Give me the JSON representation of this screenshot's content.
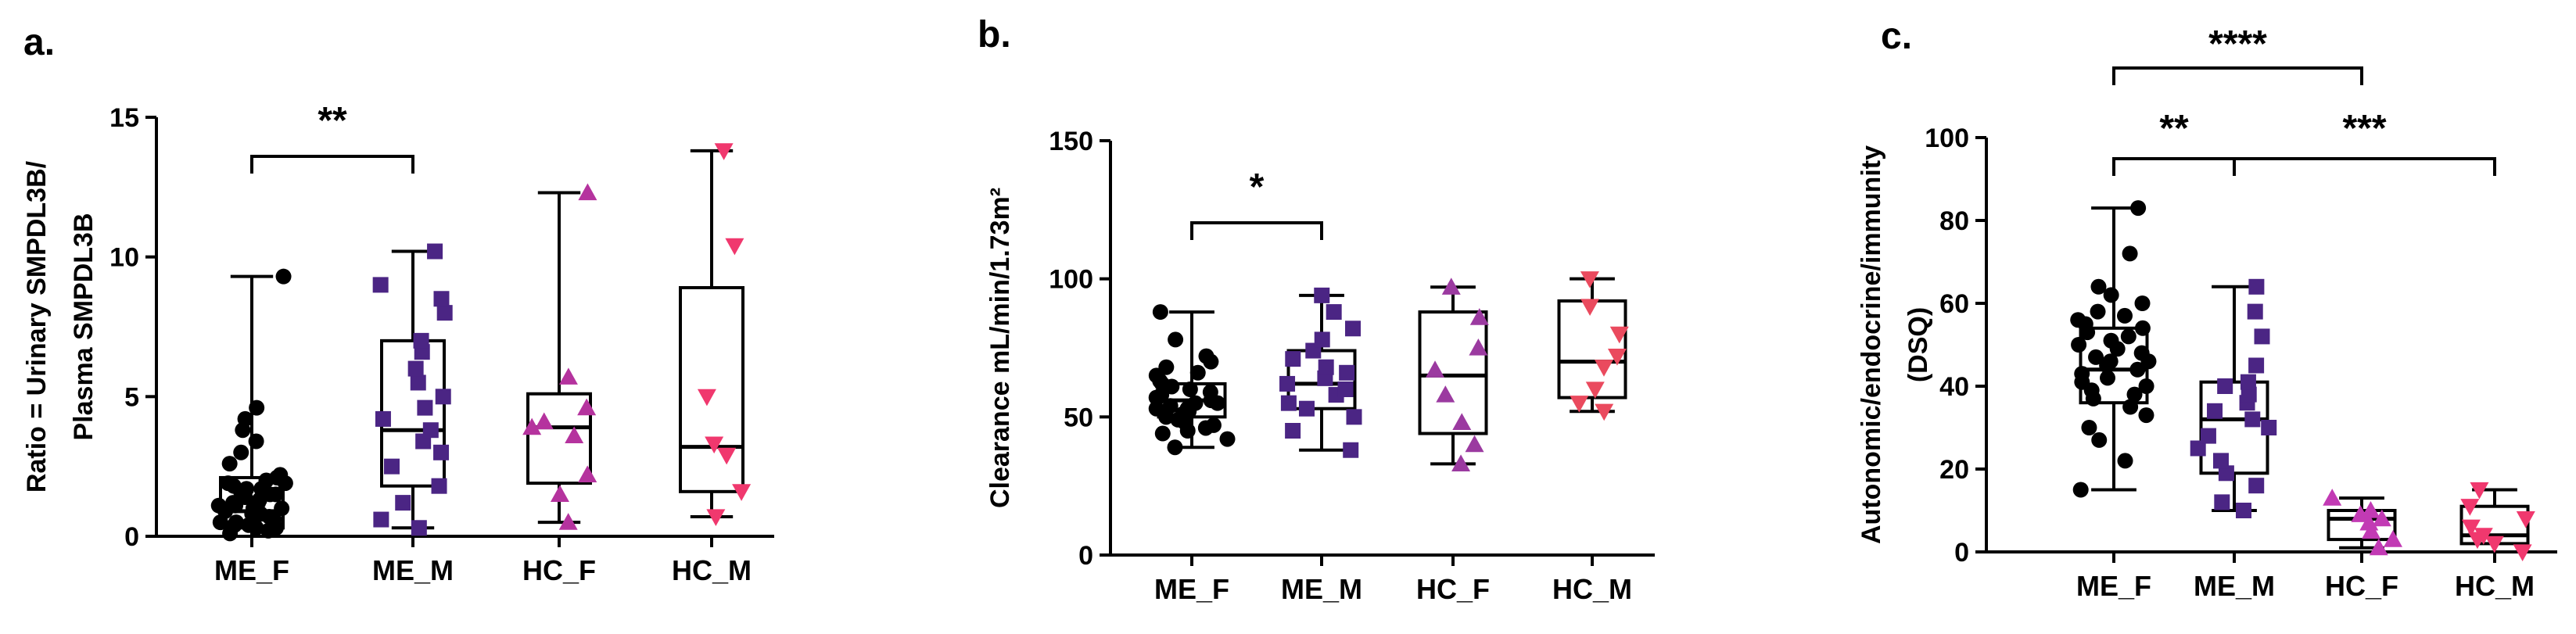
{
  "chart_data": [
    {
      "type": "box",
      "panel_label": "a.",
      "ylabel_lines": [
        "Ratio = Urinary SMPDL3B/",
        "Plasma SMPDL3B"
      ],
      "ylim": [
        0,
        15
      ],
      "yticks": [
        "0",
        "5",
        "10",
        "15"
      ],
      "categories": [
        "ME_F",
        "ME_M",
        "HC_F",
        "HC_M"
      ],
      "boxes": [
        {
          "min": 0.0,
          "q1": 0.3,
          "median": 0.9,
          "q3": 2.1,
          "max": 9.3
        },
        {
          "min": 0.3,
          "q1": 1.8,
          "median": 3.8,
          "q3": 7.0,
          "max": 10.2
        },
        {
          "min": 0.5,
          "q1": 1.9,
          "median": 3.9,
          "q3": 5.1,
          "max": 12.3
        },
        {
          "min": 0.7,
          "q1": 1.6,
          "median": 3.2,
          "q3": 8.9,
          "max": 13.8
        }
      ],
      "points": [
        [
          0.1,
          0.2,
          0.3,
          0.4,
          0.5,
          0.6,
          0.7,
          0.8,
          0.9,
          1.0,
          1.1,
          1.2,
          1.3,
          1.4,
          1.5,
          1.6,
          1.7,
          1.8,
          1.9,
          2.0,
          2.1,
          0.3,
          0.5,
          0.8,
          1.0,
          1.2,
          1.5,
          1.9,
          2.2,
          2.6,
          3.0,
          3.4,
          3.8,
          4.2,
          4.6,
          0.9,
          1.7,
          9.3,
          0.4,
          1.1
        ],
        [
          0.3,
          0.6,
          1.2,
          1.8,
          2.5,
          3.0,
          3.4,
          3.8,
          4.2,
          4.6,
          5.0,
          5.5,
          6.0,
          6.6,
          7.0,
          8.0,
          8.5,
          9.0,
          10.2
        ],
        [
          0.5,
          1.5,
          2.2,
          3.6,
          3.9,
          4.1,
          4.6,
          5.7,
          12.3
        ],
        [
          0.7,
          1.6,
          2.9,
          3.3,
          5.0,
          10.4,
          13.8
        ]
      ],
      "markers": [
        "circle",
        "square",
        "triangle-up",
        "triangle-down"
      ],
      "colors": [
        "#000000",
        "#4b2584",
        "#b5339e",
        "#f0386e"
      ],
      "significance": [
        {
          "from": "ME_F",
          "to": "ME_M",
          "label": "**"
        }
      ]
    },
    {
      "type": "box",
      "panel_label": "b.",
      "ylabel_lines": [
        "Clearance mL/min/1.73m²"
      ],
      "ylim": [
        0,
        150
      ],
      "yticks": [
        "0",
        "50",
        "100",
        "150"
      ],
      "categories": [
        "ME_F",
        "ME_M",
        "HC_F",
        "HC_M"
      ],
      "boxes": [
        {
          "min": 39,
          "q1": 50,
          "median": 56,
          "q3": 62,
          "max": 88
        },
        {
          "min": 38,
          "q1": 53,
          "median": 62,
          "q3": 74,
          "max": 94
        },
        {
          "min": 33,
          "q1": 44,
          "median": 65,
          "q3": 88,
          "max": 97
        },
        {
          "min": 52,
          "q1": 57,
          "median": 70,
          "q3": 92,
          "max": 100
        }
      ],
      "points": [
        [
          39,
          42,
          44,
          45,
          47,
          48,
          49,
          50,
          51,
          52,
          53,
          54,
          55,
          55,
          56,
          57,
          58,
          59,
          60,
          61,
          62,
          63,
          65,
          66,
          68,
          70,
          72,
          78,
          88,
          46,
          53,
          57
        ],
        [
          38,
          45,
          50,
          53,
          55,
          58,
          60,
          62,
          64,
          66,
          68,
          71,
          74,
          78,
          82,
          88,
          94
        ],
        [
          33,
          40,
          48,
          58,
          67,
          75,
          86,
          97
        ],
        [
          52,
          55,
          60,
          68,
          72,
          80,
          90,
          100
        ]
      ],
      "markers": [
        "circle",
        "square",
        "triangle-up",
        "triangle-down"
      ],
      "colors": [
        "#000000",
        "#4b2584",
        "#9b3aa0",
        "#ea4a5e"
      ],
      "significance": [
        {
          "from": "ME_F",
          "to": "ME_M",
          "label": "*"
        }
      ]
    },
    {
      "type": "box",
      "panel_label": "c.",
      "ylabel_lines": [
        "Autonomic/endocrine/immunity",
        "(DSQ)"
      ],
      "ylim": [
        0,
        100
      ],
      "yticks": [
        "0",
        "20",
        "40",
        "60",
        "80",
        "100"
      ],
      "categories": [
        "ME_F",
        "ME_M",
        "HC_F",
        "HC_M"
      ],
      "boxes": [
        {
          "min": 15,
          "q1": 36,
          "median": 44,
          "q3": 54,
          "max": 83
        },
        {
          "min": 10,
          "q1": 19,
          "median": 32,
          "q3": 41,
          "max": 64
        },
        {
          "min": 1,
          "q1": 3,
          "median": 8,
          "q3": 10,
          "max": 13
        },
        {
          "min": 0,
          "q1": 2,
          "median": 4,
          "q3": 11,
          "max": 15
        }
      ],
      "points": [
        [
          15,
          22,
          27,
          30,
          33,
          35,
          37,
          38,
          40,
          41,
          42,
          43,
          44,
          45,
          46,
          47,
          48,
          49,
          50,
          51,
          52,
          53,
          54,
          55,
          57,
          58,
          60,
          62,
          64,
          72,
          83,
          39,
          46,
          56
        ],
        [
          10,
          12,
          16,
          19,
          22,
          25,
          28,
          30,
          32,
          34,
          36,
          38,
          40,
          41,
          45,
          52,
          58,
          64
        ],
        [
          1,
          3,
          5,
          7,
          8,
          9,
          10,
          13
        ],
        [
          0,
          2,
          3,
          4,
          6,
          8,
          11,
          15
        ]
      ],
      "markers": [
        "circle",
        "square",
        "triangle-up",
        "triangle-down"
      ],
      "colors": [
        "#000000",
        "#4b2584",
        "#c23ab4",
        "#f0386e"
      ],
      "significance": [
        {
          "from": "ME_F",
          "to": "ME_M",
          "label": "**"
        },
        {
          "from": "ME_F",
          "to": "HC_F",
          "label": "****"
        },
        {
          "from": "ME_M",
          "to": "HC_M",
          "label": "***"
        }
      ]
    }
  ]
}
